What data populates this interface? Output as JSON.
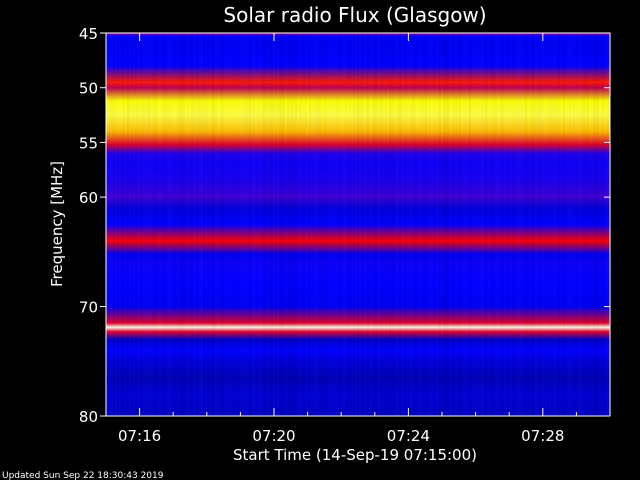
{
  "chart_data": {
    "type": "heatmap",
    "title": "Solar radio Flux (Glasgow)",
    "xlabel": "Start Time (14-Sep-19 07:15:00)",
    "ylabel": "Frequency [MHz]",
    "x_range": [
      "07:15:00",
      "07:30:00"
    ],
    "ylim": [
      45,
      80
    ],
    "y_inverted": true,
    "x_ticks": [
      "07:16",
      "07:20",
      "07:24",
      "07:28"
    ],
    "x_tick_minutes": [
      1,
      5,
      9,
      13
    ],
    "y_ticks": [
      45,
      50,
      55,
      60,
      70,
      80
    ],
    "colormap": [
      "#000066",
      "#0000ff",
      "#8000a0",
      "#ff0000",
      "#ffff00",
      "#ffffff"
    ],
    "intensity_profile": {
      "frequency_mhz": [
        45,
        45.3,
        46,
        48,
        49.5,
        50,
        51.2,
        52.5,
        54,
        55.2,
        56,
        57,
        58.5,
        60,
        61,
        62.5,
        64,
        65.2,
        66,
        68,
        70,
        71.5,
        71.9,
        72.3,
        73,
        74,
        75,
        76.5,
        78,
        80
      ],
      "relative_intensity": [
        0.45,
        0.2,
        0.18,
        0.2,
        0.62,
        0.5,
        0.8,
        0.85,
        0.75,
        0.55,
        0.25,
        0.22,
        0.24,
        0.3,
        0.15,
        0.2,
        0.6,
        0.18,
        0.22,
        0.2,
        0.18,
        0.55,
        0.98,
        0.55,
        0.12,
        0.2,
        0.15,
        0.1,
        0.14,
        0.12
      ]
    },
    "notes": []
  },
  "footer": {
    "updated": "Updated Sun Sep 22 18:30:43 2019"
  }
}
